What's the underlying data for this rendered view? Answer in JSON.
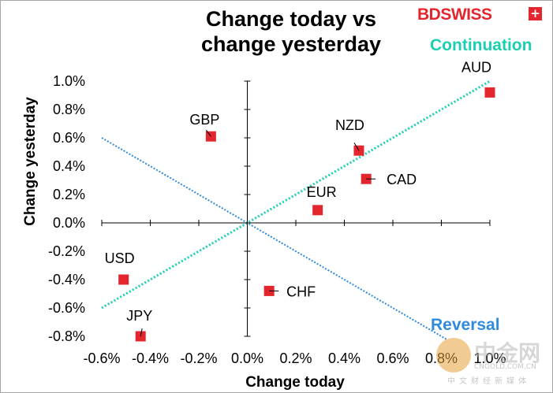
{
  "brand": {
    "logo_text": "BDSWISS",
    "logo_mark": "+",
    "watermark_text": "中金网",
    "watermark_domain": "CNGOLD.COM.CN",
    "watermark_subtitle": "中文财经新媒体"
  },
  "colors": {
    "continuation": "#1ccfb0",
    "reversal": "#2f8bde",
    "marker": "#e3262d",
    "logo": "#e3262d"
  },
  "chart_data": {
    "type": "scatter",
    "title_line1": "Change today vs",
    "title_line2": "change yesterday",
    "xlabel": "Change today",
    "ylabel": "Change yesterday",
    "xlim": [
      -0.6,
      1.0
    ],
    "ylim": [
      -0.8,
      1.0
    ],
    "x_ticks": [
      -0.6,
      -0.4,
      -0.2,
      0.0,
      0.2,
      0.4,
      0.6,
      0.8,
      1.0
    ],
    "x_tick_labels": [
      "-0.6%",
      "-0.4%",
      "-0.2%",
      "0.0%",
      "0.2%",
      "0.4%",
      "0.6%",
      "0.8%",
      "1.0%"
    ],
    "y_ticks": [
      -0.8,
      -0.6,
      -0.4,
      -0.2,
      0.0,
      0.2,
      0.4,
      0.6,
      0.8,
      1.0
    ],
    "y_tick_labels": [
      "-0.8%",
      "-0.6%",
      "-0.4%",
      "-0.2%",
      "0.0%",
      "0.2%",
      "0.4%",
      "0.6%",
      "0.8%",
      "1.0%"
    ],
    "grid": false,
    "points": [
      {
        "label": "AUD",
        "x": 1.0,
        "y": 0.92
      },
      {
        "label": "NZD",
        "x": 0.46,
        "y": 0.51
      },
      {
        "label": "CAD",
        "x": 0.49,
        "y": 0.31
      },
      {
        "label": "EUR",
        "x": 0.29,
        "y": 0.09
      },
      {
        "label": "GBP",
        "x": -0.15,
        "y": 0.61
      },
      {
        "label": "USD",
        "x": -0.51,
        "y": -0.4
      },
      {
        "label": "JPY",
        "x": -0.44,
        "y": -0.8
      },
      {
        "label": "CHF",
        "x": 0.09,
        "y": -0.48
      }
    ],
    "reference_lines": [
      {
        "name": "Continuation",
        "from": [
          -0.6,
          -0.6
        ],
        "to": [
          1.0,
          1.0
        ]
      },
      {
        "name": "Reversal",
        "from": [
          -0.6,
          0.6
        ],
        "to": [
          0.82,
          -0.82
        ]
      }
    ]
  }
}
